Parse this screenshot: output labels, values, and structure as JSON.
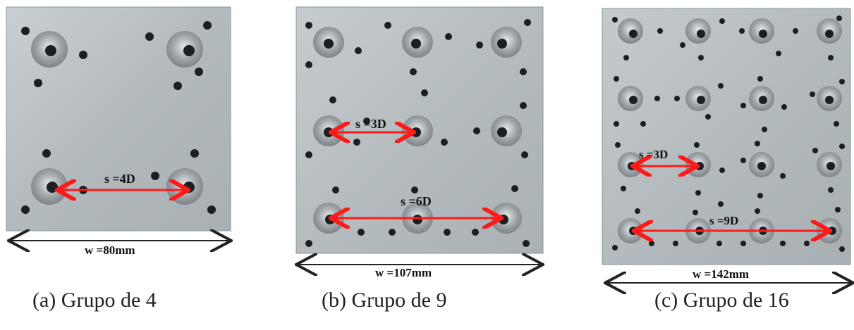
{
  "panels": [
    {
      "id": "a",
      "spacing_label": "s =4D",
      "width_label": "w =80mm",
      "caption": "(a)  Grupo de 4"
    },
    {
      "id": "b",
      "spacing_labels": [
        "s =3D",
        "s =6D"
      ],
      "width_label": "w =107mm",
      "caption": "(b)  Grupo de 9"
    },
    {
      "id": "c",
      "spacing_labels": [
        "s =3D",
        "s =9D"
      ],
      "width_label": "w =142mm",
      "caption": "(c)  Grupo de 16"
    }
  ],
  "colors": {
    "plate": "#b9c0c4",
    "hole": "#1c1f22",
    "arrow": "#ff1a1a",
    "dim": "#222222"
  }
}
